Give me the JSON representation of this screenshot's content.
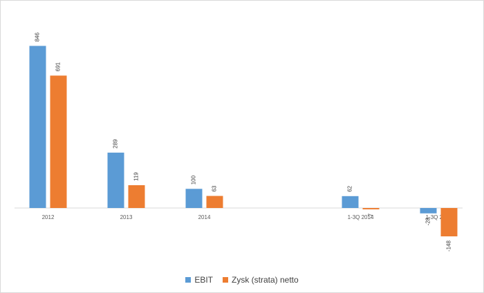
{
  "chart_data": {
    "type": "bar",
    "categories": [
      "2012",
      "2013",
      "2014",
      "",
      "1-3Q 2014",
      "1-3Q 2015"
    ],
    "series": [
      {
        "name": "EBIT",
        "values": [
          846,
          289,
          100,
          null,
          62,
          -28
        ],
        "labels": [
          "846",
          "289",
          "100",
          "",
          "62",
          "-28"
        ],
        "color": "#5b9bd5"
      },
      {
        "name": "Zysk (strata) netto",
        "values": [
          691,
          119,
          63,
          null,
          -7,
          -148
        ],
        "labels": [
          "691",
          "119",
          "63",
          "",
          "-7",
          "-148"
        ],
        "color": "#ed7d31"
      }
    ],
    "title": "",
    "xlabel": "",
    "ylabel": "",
    "ylim": [
      -160,
      880
    ],
    "grid": false,
    "legend_position": "bottom"
  }
}
